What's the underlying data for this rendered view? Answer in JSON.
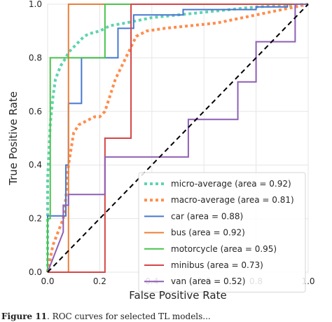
{
  "chart_data": {
    "type": "line",
    "xlabel": "False Positive Rate",
    "ylabel": "True Positive Rate",
    "xlim": [
      0.0,
      1.0
    ],
    "ylim": [
      0.0,
      1.0
    ],
    "xticks": [
      "0.0",
      "0.2",
      "0.4",
      "0.6",
      "0.8",
      "1.0"
    ],
    "yticks": [
      "0.0",
      "0.2",
      "0.4",
      "0.6",
      "0.8",
      "1.0"
    ],
    "grid": true,
    "legend_position": "lower-right",
    "series": [
      {
        "name": "micro-average (area = 0.92)",
        "color": "#5fd3b0",
        "style": "dotted",
        "x": [
          0.0,
          0.0,
          0.01,
          0.02,
          0.03,
          0.05,
          0.07,
          0.08,
          0.1,
          0.12,
          0.14,
          0.16,
          0.2,
          0.22,
          0.24,
          0.3,
          0.35,
          0.4,
          0.5,
          0.6,
          0.7,
          0.8,
          0.9,
          1.0
        ],
        "y": [
          0.0,
          0.35,
          0.55,
          0.65,
          0.72,
          0.77,
          0.8,
          0.82,
          0.84,
          0.86,
          0.88,
          0.89,
          0.9,
          0.91,
          0.92,
          0.93,
          0.94,
          0.95,
          0.96,
          0.97,
          0.98,
          0.99,
          0.995,
          1.0
        ]
      },
      {
        "name": "macro-average (area = 0.81)",
        "color": "#ff8c4d",
        "style": "dotted",
        "x": [
          0.0,
          0.02,
          0.04,
          0.06,
          0.07,
          0.08,
          0.1,
          0.12,
          0.14,
          0.16,
          0.18,
          0.2,
          0.22,
          0.24,
          0.26,
          0.28,
          0.3,
          0.32,
          0.34,
          0.38,
          0.45,
          0.55,
          0.65,
          0.75,
          0.8,
          0.85,
          0.9,
          0.95,
          1.0
        ],
        "y": [
          0.0,
          0.1,
          0.15,
          0.2,
          0.28,
          0.4,
          0.52,
          0.55,
          0.56,
          0.57,
          0.58,
          0.58,
          0.6,
          0.66,
          0.72,
          0.76,
          0.8,
          0.84,
          0.88,
          0.9,
          0.91,
          0.92,
          0.93,
          0.95,
          0.96,
          0.97,
          0.98,
          0.99,
          1.0
        ]
      },
      {
        "name": "car (area = 0.88)",
        "color": "#4878cf",
        "style": "solid",
        "x": [
          0.0,
          0.0,
          0.07,
          0.07,
          0.08,
          0.08,
          0.13,
          0.13,
          0.27,
          0.27,
          0.33,
          0.33,
          0.52,
          0.52,
          0.8,
          0.8,
          0.92,
          0.92,
          1.0
        ],
        "y": [
          0.0,
          0.21,
          0.21,
          0.4,
          0.4,
          0.63,
          0.63,
          0.8,
          0.8,
          0.91,
          0.91,
          0.96,
          0.96,
          0.98,
          0.98,
          0.99,
          0.99,
          1.0,
          1.0
        ]
      },
      {
        "name": "bus (area = 0.92)",
        "color": "#e8803a",
        "style": "solid",
        "x": [
          0.0,
          0.08,
          0.08,
          0.32,
          0.32,
          1.0
        ],
        "y": [
          0.0,
          0.0,
          1.0,
          1.0,
          1.0,
          1.0
        ]
      },
      {
        "name": "motorcycle (area = 0.95)",
        "color": "#4cc24c",
        "style": "solid",
        "x": [
          0.0,
          0.0,
          0.01,
          0.01,
          0.22,
          0.22,
          1.0
        ],
        "y": [
          0.0,
          0.2,
          0.2,
          0.8,
          0.8,
          1.0,
          1.0
        ]
      },
      {
        "name": "minibus (area = 0.73)",
        "color": "#d64545",
        "style": "solid",
        "x": [
          0.0,
          0.22,
          0.22,
          0.32,
          0.32,
          1.0
        ],
        "y": [
          0.0,
          0.0,
          0.5,
          0.5,
          1.0,
          1.0
        ]
      },
      {
        "name": "van (area = 0.52)",
        "color": "#8e5fb5",
        "style": "solid",
        "x": [
          0.0,
          0.06,
          0.06,
          0.08,
          0.08,
          0.22,
          0.22,
          0.54,
          0.54,
          0.73,
          0.73,
          0.8,
          0.8,
          0.95,
          0.95,
          1.0
        ],
        "y": [
          0.0,
          0.15,
          0.25,
          0.25,
          0.29,
          0.29,
          0.43,
          0.43,
          0.57,
          0.57,
          0.71,
          0.71,
          0.86,
          0.86,
          1.0,
          1.0
        ]
      },
      {
        "name": "",
        "color": "#000000",
        "style": "dashed",
        "x": [
          0.0,
          1.0
        ],
        "y": [
          0.0,
          1.0
        ]
      }
    ]
  },
  "caption": {
    "prefix": "Figure 11",
    "text": ". ROC curves for selected TL models..."
  }
}
